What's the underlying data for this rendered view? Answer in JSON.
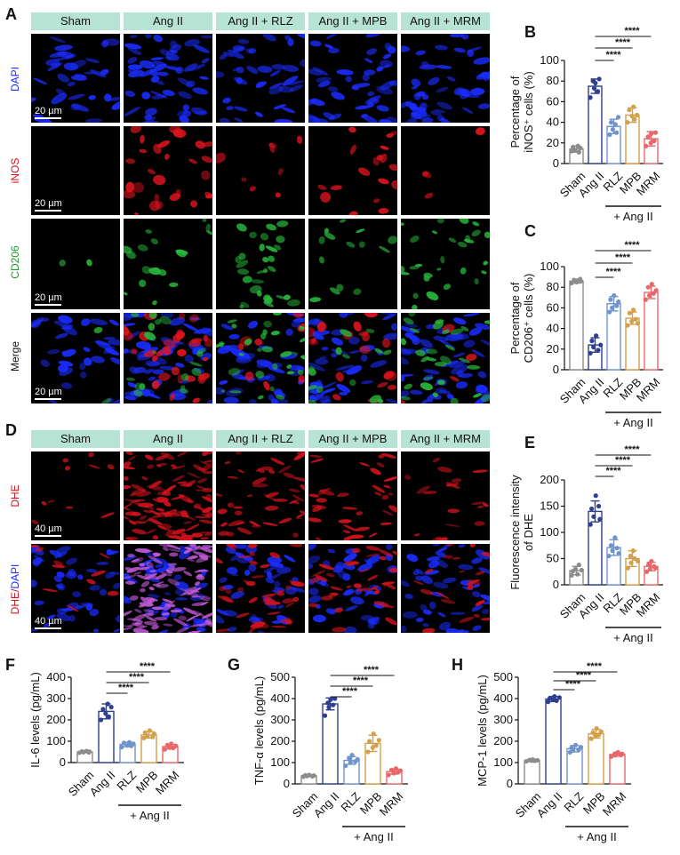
{
  "panels": {
    "A": "A",
    "B": "B",
    "C": "C",
    "D": "D",
    "E": "E",
    "F": "F",
    "G": "G",
    "H": "H"
  },
  "groups": [
    "Sham",
    "Ang II",
    "Ang II + RLZ",
    "Ang II + MPB",
    "Ang II + MRM"
  ],
  "panel_a": {
    "row_labels": [
      "DAPI",
      "iNOS",
      "CD206",
      "Merge"
    ],
    "scale_bar": "20 µm"
  },
  "panel_d": {
    "row_labels": [
      "DHE",
      "DHE/DAPI"
    ],
    "scale_bar": "40 µm"
  },
  "colors": {
    "header_bg": "#b6e3d3",
    "Sham": "#8c8c8c",
    "Ang II": "#2f3f8f",
    "RLZ": "#6f94cc",
    "MPB": "#d4a04a",
    "MRM": "#e8676b",
    "dapi": "#1a2cff",
    "inos": "#e0141e",
    "cd206": "#27b53a",
    "dhe": "#d4121c",
    "merge_purple": "#c25ad9"
  },
  "chart_data": [
    {
      "id": "B",
      "type": "bar",
      "categories": [
        "Sham",
        "Ang II",
        "RLZ",
        "MPB",
        "MRM"
      ],
      "values": [
        14,
        75,
        36,
        47,
        24
      ],
      "errors": [
        3,
        7,
        7,
        7,
        7
      ],
      "points": [
        [
          12,
          16,
          13,
          17,
          11,
          15
        ],
        [
          64,
          80,
          73,
          78,
          70,
          82
        ],
        [
          28,
          40,
          33,
          38,
          30,
          45
        ],
        [
          40,
          52,
          46,
          55,
          43,
          47
        ],
        [
          17,
          26,
          20,
          29,
          22,
          30
        ]
      ],
      "ylabel_lines": [
        "Percentage of",
        "iNOS⁺ cells (%)"
      ],
      "ylim": [
        0,
        100
      ],
      "yticks": [
        0,
        20,
        40,
        60,
        80,
        100
      ],
      "group_label": "+ Ang II",
      "significance": [
        "****",
        "****",
        "****"
      ]
    },
    {
      "id": "C",
      "type": "bar",
      "categories": [
        "Sham",
        "Ang II",
        "RLZ",
        "MPB",
        "MRM"
      ],
      "values": [
        86,
        24,
        64,
        50,
        75
      ],
      "errors": [
        2,
        7,
        7,
        6,
        6
      ],
      "points": [
        [
          84,
          87,
          86,
          85,
          88,
          86
        ],
        [
          16,
          28,
          22,
          33,
          19,
          24
        ],
        [
          56,
          68,
          60,
          72,
          62,
          66
        ],
        [
          43,
          55,
          47,
          58,
          49,
          45
        ],
        [
          68,
          80,
          72,
          83,
          74,
          77
        ]
      ],
      "ylabel_lines": [
        "Percentage of",
        "CD206⁺ cells (%)"
      ],
      "ylim": [
        0,
        100
      ],
      "yticks": [
        0,
        20,
        40,
        60,
        80,
        100
      ],
      "group_label": "+ Ang II",
      "significance": [
        "****",
        "****",
        "****"
      ]
    },
    {
      "id": "E",
      "type": "bar",
      "categories": [
        "Sham",
        "Ang II",
        "RLZ",
        "MPB",
        "MRM"
      ],
      "values": [
        27,
        140,
        71,
        50,
        35
      ],
      "errors": [
        8,
        20,
        15,
        15,
        8
      ],
      "points": [
        [
          18,
          26,
          30,
          20,
          38,
          28
        ],
        [
          115,
          145,
          130,
          170,
          150,
          125
        ],
        [
          55,
          75,
          65,
          90,
          70,
          60
        ],
        [
          32,
          55,
          42,
          65,
          50,
          45
        ],
        [
          25,
          38,
          30,
          45,
          35,
          32
        ]
      ],
      "ylabel_lines": [
        "Fluorescence intensity",
        "of DHE"
      ],
      "ylim": [
        0,
        200
      ],
      "yticks": [
        0,
        50,
        100,
        150,
        200
      ],
      "group_label": "+ Ang II",
      "significance": [
        "****",
        "****",
        "****"
      ]
    },
    {
      "id": "F",
      "type": "bar",
      "categories": [
        "Sham",
        "Ang II",
        "RLZ",
        "MPB",
        "MRM"
      ],
      "values": [
        50,
        240,
        85,
        130,
        75
      ],
      "errors": [
        4,
        35,
        10,
        15,
        10
      ],
      "points": [
        [
          46,
          52,
          49,
          54,
          48,
          51
        ],
        [
          200,
          250,
          230,
          275,
          215,
          260
        ],
        [
          72,
          92,
          80,
          95,
          78,
          88
        ],
        [
          115,
          140,
          125,
          150,
          120,
          135
        ],
        [
          62,
          82,
          70,
          88,
          68,
          78
        ]
      ],
      "ylabel_lines": [
        "IL-6 levels (pg/mL)"
      ],
      "ylim": [
        0,
        400
      ],
      "yticks": [
        0,
        100,
        200,
        300,
        400
      ],
      "group_label": "+ Ang II",
      "significance": [
        "****",
        "****",
        "****"
      ]
    },
    {
      "id": "G",
      "type": "bar",
      "categories": [
        "Sham",
        "Ang II",
        "RLZ",
        "MPB",
        "MRM"
      ],
      "values": [
        38,
        375,
        110,
        190,
        58
      ],
      "errors": [
        4,
        28,
        18,
        38,
        12
      ],
      "points": [
        [
          34,
          40,
          37,
          42,
          36,
          39
        ],
        [
          320,
          380,
          360,
          395,
          370,
          400
        ],
        [
          85,
          120,
          100,
          135,
          105,
          115
        ],
        [
          150,
          200,
          170,
          235,
          180,
          205
        ],
        [
          42,
          65,
          50,
          72,
          55,
          62
        ]
      ],
      "ylabel_lines": [
        "TNF-α levels (pg/mL)"
      ],
      "ylim": [
        0,
        500
      ],
      "yticks": [
        0,
        100,
        200,
        300,
        400,
        500
      ],
      "group_label": "+ Ang II",
      "significance": [
        "****",
        "****",
        "****"
      ]
    },
    {
      "id": "H",
      "type": "bar",
      "categories": [
        "Sham",
        "Ang II",
        "RLZ",
        "MPB",
        "MRM"
      ],
      "values": [
        110,
        398,
        165,
        235,
        138
      ],
      "errors": [
        4,
        12,
        15,
        20,
        8
      ],
      "points": [
        [
          106,
          112,
          109,
          114,
          108,
          111
        ],
        [
          385,
          402,
          395,
          410,
          390,
          405
        ],
        [
          148,
          170,
          158,
          182,
          160,
          172
        ],
        [
          212,
          240,
          225,
          260,
          230,
          245
        ],
        [
          128,
          142,
          134,
          148,
          136,
          140
        ]
      ],
      "ylabel_lines": [
        "MCP-1 levels (pg/mL)"
      ],
      "ylim": [
        0,
        500
      ],
      "yticks": [
        0,
        100,
        200,
        300,
        400,
        500
      ],
      "group_label": "+ Ang II",
      "significance": [
        "****",
        "****",
        "****"
      ]
    }
  ]
}
